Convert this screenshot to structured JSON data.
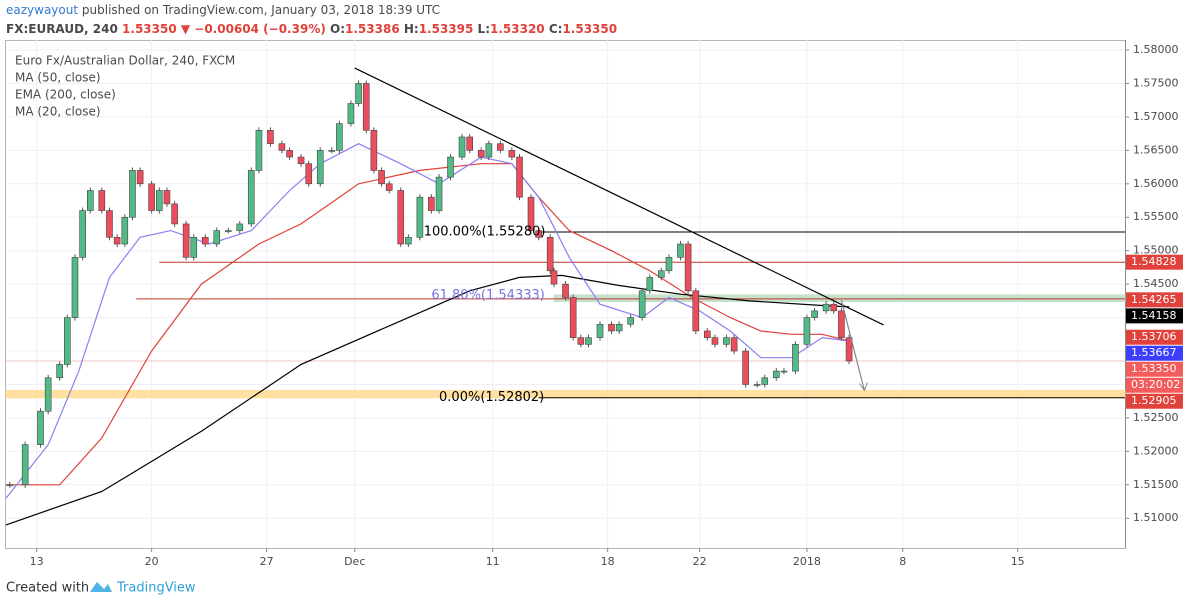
{
  "header": {
    "author": "eazywayout",
    "published": "published on TradingView.com, January 03, 2018 18:39 UTC",
    "symbol": "FX:EURAUD, 240",
    "price": "1.53350",
    "change": "▼ −0.00604 (−0.39%)",
    "ohlc": [
      {
        "key": "O:",
        "value": "1.53386"
      },
      {
        "key": "H:",
        "value": "1.53395"
      },
      {
        "key": "L:",
        "value": "1.53320"
      },
      {
        "key": "C:",
        "value": "1.53350"
      }
    ]
  },
  "chart_data": {
    "type": "candlestick",
    "title": "Euro Fx/Australian Dollar, 240, FXCM",
    "x": [
      1,
      5,
      9,
      11,
      14,
      16,
      18,
      20,
      22,
      25,
      27,
      29,
      31,
      33,
      35,
      38,
      40,
      42,
      44,
      47,
      49,
      52,
      55,
      58,
      61,
      64,
      66,
      69,
      72,
      74,
      77,
      79,
      82,
      85,
      87,
      90,
      92,
      94,
      96,
      98,
      100,
      103,
      105,
      108,
      111,
      113,
      116,
      119,
      121,
      124,
      126,
      129,
      132,
      134,
      137,
      139,
      142,
      143,
      146,
      148,
      150,
      152,
      155,
      158,
      160,
      163,
      166,
      168,
      171,
      173,
      176,
      178,
      180,
      183,
      185,
      188,
      190,
      193,
      196,
      198,
      201,
      203,
      206,
      209,
      211,
      214,
      216,
      218,
      220
    ],
    "close": [
      1.515,
      1.521,
      1.526,
      1.531,
      1.533,
      1.54,
      1.549,
      1.556,
      1.559,
      1.556,
      1.552,
      1.551,
      1.555,
      1.562,
      1.56,
      1.556,
      1.559,
      1.557,
      1.554,
      1.549,
      1.552,
      1.551,
      1.553,
      1.553,
      1.554,
      1.562,
      1.568,
      1.566,
      1.565,
      1.564,
      1.563,
      1.56,
      1.565,
      1.565,
      1.569,
      1.572,
      1.575,
      1.568,
      1.562,
      1.56,
      1.559,
      1.551,
      1.552,
      1.558,
      1.556,
      1.561,
      1.564,
      1.567,
      1.565,
      1.564,
      1.566,
      1.565,
      1.564,
      1.558,
      1.553,
      1.552,
      1.547,
      1.545,
      1.543,
      1.537,
      1.536,
      1.537,
      1.539,
      1.538,
      1.539,
      1.54,
      1.544,
      1.546,
      1.547,
      1.549,
      1.551,
      1.544,
      1.538,
      1.537,
      1.536,
      1.537,
      1.535,
      1.53,
      1.53,
      1.531,
      1.532,
      1.532,
      1.536,
      1.54,
      1.541,
      1.542,
      1.541,
      1.537,
      1.5335
    ],
    "up_color": "#53b987",
    "down_color": "#eb4d5c",
    "indicators": [
      {
        "name": "MA (50, close)",
        "color": "#e0413b",
        "x": [
          0,
          14,
          25,
          38,
          51,
          66,
          77,
          87,
          92,
          108,
          124,
          132,
          139,
          147,
          158,
          168,
          179,
          189,
          197,
          205,
          213,
          220
        ],
        "values": [
          1.515,
          1.515,
          1.522,
          1.535,
          1.545,
          1.551,
          1.554,
          1.558,
          1.56,
          1.562,
          1.563,
          1.563,
          1.558,
          1.553,
          1.55,
          1.547,
          1.543,
          1.54,
          1.538,
          1.5375,
          1.5375,
          1.5365
        ]
      },
      {
        "name": "EMA (200, close)",
        "color": "#000000",
        "x": [
          0,
          25,
          51,
          77,
          103,
          121,
          134,
          145,
          160,
          176,
          194,
          213,
          220
        ],
        "values": [
          1.509,
          1.514,
          1.523,
          1.533,
          1.5395,
          1.544,
          1.546,
          1.5463,
          1.5448,
          1.5435,
          1.5425,
          1.5418,
          1.5416
        ]
      },
      {
        "name": "MA (20, close)",
        "color": "#8a7ff0",
        "x": [
          0,
          11,
          19,
          27,
          35,
          43,
          53,
          64,
          74,
          82,
          92,
          103,
          113,
          124,
          132,
          139,
          147,
          155,
          166,
          173,
          181,
          189,
          197,
          205,
          213,
          220
        ],
        "values": [
          1.513,
          1.521,
          1.532,
          1.546,
          1.552,
          1.553,
          1.551,
          1.553,
          1.559,
          1.563,
          1.566,
          1.563,
          1.56,
          1.564,
          1.563,
          1.558,
          1.549,
          1.542,
          1.54,
          1.543,
          1.541,
          1.538,
          1.534,
          1.534,
          1.537,
          1.5365
        ]
      }
    ],
    "xlim": [
      0,
      292
    ],
    "xticks": [
      {
        "value": 8,
        "label": "13"
      },
      {
        "value": 38,
        "label": "20"
      },
      {
        "value": 68,
        "label": "27"
      },
      {
        "value": 91,
        "label": "Dec"
      },
      {
        "value": 127,
        "label": "11"
      },
      {
        "value": 157,
        "label": "18"
      },
      {
        "value": 181,
        "label": "22"
      },
      {
        "value": 209,
        "label": "2018"
      },
      {
        "value": 234,
        "label": "8"
      },
      {
        "value": 264,
        "label": "15"
      }
    ],
    "ylim": [
      1.50555,
      1.5815
    ],
    "yticks": [
      {
        "value": 1.51,
        "label": "1.51000"
      },
      {
        "value": 1.515,
        "label": "1.51500"
      },
      {
        "value": 1.52,
        "label": "1.52000"
      },
      {
        "value": 1.525,
        "label": "1.52500"
      },
      {
        "value": 1.53,
        "label": "1.53000"
      },
      {
        "value": 1.535,
        "label": "1.53500"
      },
      {
        "value": 1.54,
        "label": "1.54000"
      },
      {
        "value": 1.545,
        "label": "1.54500"
      },
      {
        "value": 1.55,
        "label": "1.55000"
      },
      {
        "value": 1.555,
        "label": "1.55500"
      },
      {
        "value": 1.56,
        "label": "1.56000"
      },
      {
        "value": 1.565,
        "label": "1.56500"
      },
      {
        "value": 1.57,
        "label": "1.57000"
      },
      {
        "value": 1.575,
        "label": "1.57500"
      },
      {
        "value": 1.58,
        "label": "1.58000"
      }
    ],
    "grid": true,
    "trendlines": [
      {
        "x": [
          91,
          229
        ],
        "y": [
          1.5773,
          1.5389
        ],
        "color": "#000000"
      }
    ],
    "projection": {
      "x": [
        218,
        224
      ],
      "y": [
        1.5426,
        1.5291
      ],
      "color": "#888888"
    },
    "levels": [
      {
        "value": 1.5528,
        "x_start": 139,
        "color": "#000000"
      },
      {
        "value": 1.54828,
        "x_start": 40,
        "color": "#c0392b"
      },
      {
        "value": 1.5428,
        "x_start": 34,
        "color": "#c0392b"
      },
      {
        "value": 1.52802,
        "x_start": 139,
        "color": "#000000"
      },
      {
        "value": 1.5335,
        "x_start": 0,
        "color": "#f2c4c4"
      }
    ],
    "zones": [
      {
        "range": [
          1.5424,
          1.5434
        ],
        "x_start": 143,
        "color": "#b9dcc0"
      },
      {
        "range": [
          1.528,
          1.5291
        ],
        "x_start": 0,
        "color": "#ffd98a"
      }
    ],
    "fib_labels": [
      {
        "label": "100.00%(1.55280)",
        "value": 1.5528,
        "x": 109,
        "color": "#000000"
      },
      {
        "label": "61.80%(1.54333)",
        "value": 1.54333,
        "x": 111,
        "color": "#7a73e0"
      },
      {
        "label": "0.00%(1.52802)",
        "value": 1.52802,
        "x": 113,
        "color": "#000000"
      }
    ],
    "price_labels": [
      {
        "value": 1.54828,
        "label": "1.54828",
        "color": "#e0413b"
      },
      {
        "value": 1.54265,
        "label": "1.54265",
        "color": "#e0413b"
      },
      {
        "value": 1.54158,
        "label": "1.54158",
        "color": "#000000"
      },
      {
        "value": 1.53706,
        "label": "1.53706",
        "color": "#e0413b"
      },
      {
        "value": 1.53667,
        "label": "1.53667",
        "color": "#3d3dff"
      },
      {
        "value": 1.5335,
        "label": "1.53350",
        "color": "#f45b5b"
      },
      {
        "value": 1.52905,
        "label": "1.52905",
        "color": "#e0413b"
      }
    ],
    "countdown": "03:20:02"
  },
  "footer": {
    "created_with": "Created with",
    "brand": "TradingView"
  }
}
